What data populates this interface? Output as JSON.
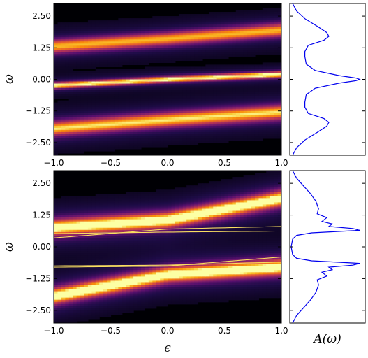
{
  "chart_data": [
    {
      "type": "heatmap",
      "panel": "top",
      "xlabel": "",
      "ylabel": "ω",
      "xlim": [
        -1.0,
        1.0
      ],
      "ylim": [
        -3.0,
        3.0
      ],
      "x_ticks": [
        "−1.0",
        "−0.5",
        "0.0",
        "0.5",
        "1.0"
      ],
      "x_tick_values": [
        -1.0,
        -0.5,
        0.0,
        0.5,
        1.0
      ],
      "y_ticks": [
        "2.50",
        "1.25",
        "0.00",
        "−1.25",
        "−2.50"
      ],
      "y_tick_values": [
        2.5,
        1.25,
        0.0,
        -1.25,
        -2.5
      ],
      "colormap": "inferno",
      "bands": [
        {
          "name": "upper-band",
          "epsilon": [
            -1.0,
            0.0,
            1.0
          ],
          "omega": [
            1.3,
            1.6,
            1.95
          ],
          "intensity": 0.75,
          "width": 0.18
        },
        {
          "name": "lower-band",
          "epsilon": [
            -1.0,
            0.0,
            1.0
          ],
          "omega": [
            -1.95,
            -1.6,
            -1.3
          ],
          "intensity": 0.8,
          "width": 0.2
        },
        {
          "name": "central-band",
          "epsilon": [
            -1.0,
            0.0,
            1.0
          ],
          "omega": [
            -0.25,
            0.0,
            0.2
          ],
          "intensity": 0.9,
          "width": 0.08
        }
      ],
      "lines": [
        {
          "name": "quasiparticle-line",
          "epsilon": [
            -1.0,
            0.0,
            1.0
          ],
          "omega": [
            -0.22,
            -0.02,
            0.18
          ]
        }
      ]
    },
    {
      "type": "line",
      "panel": "top-side",
      "xlabel": "",
      "ylabel": "",
      "ylim": [
        -3.0,
        3.0
      ],
      "line_color": "#0000ee",
      "omega": [
        -3.0,
        -2.7,
        -2.4,
        -2.1,
        -1.85,
        -1.7,
        -1.55,
        -1.35,
        -1.1,
        -0.9,
        -0.6,
        -0.35,
        -0.15,
        -0.05,
        0.0,
        0.05,
        0.15,
        0.35,
        0.6,
        0.9,
        1.1,
        1.35,
        1.55,
        1.7,
        1.85,
        2.1,
        2.4,
        2.7,
        3.0
      ],
      "A": [
        0.02,
        0.08,
        0.2,
        0.38,
        0.52,
        0.55,
        0.48,
        0.25,
        0.2,
        0.2,
        0.22,
        0.35,
        0.7,
        0.95,
        1.0,
        0.95,
        0.7,
        0.35,
        0.22,
        0.2,
        0.2,
        0.25,
        0.48,
        0.55,
        0.52,
        0.38,
        0.2,
        0.08,
        0.02
      ]
    },
    {
      "type": "heatmap",
      "panel": "bottom",
      "xlabel": "ϵ",
      "ylabel": "ω",
      "xlim": [
        -1.0,
        1.0
      ],
      "ylim": [
        -3.0,
        3.0
      ],
      "x_ticks": [
        "−1.0",
        "−0.5",
        "0.0",
        "0.5",
        "1.0"
      ],
      "x_tick_values": [
        -1.0,
        -0.5,
        0.0,
        0.5,
        1.0
      ],
      "y_ticks": [
        "2.50",
        "1.25",
        "0.00",
        "−1.25",
        "−2.50"
      ],
      "y_tick_values": [
        2.5,
        1.25,
        0.0,
        -1.25,
        -2.5
      ],
      "colormap": "inferno",
      "bands": [
        {
          "name": "upper-band",
          "epsilon": [
            -1.0,
            0.0,
            1.0
          ],
          "omega": [
            0.75,
            1.05,
            1.9
          ],
          "intensity": 0.95,
          "width": 0.22
        },
        {
          "name": "lower-band",
          "epsilon": [
            -1.0,
            0.0,
            1.0
          ],
          "omega": [
            -1.95,
            -1.1,
            -0.8
          ],
          "intensity": 0.95,
          "width": 0.22
        }
      ],
      "lines": [
        {
          "name": "line-1",
          "epsilon": [
            -1.0,
            0.0,
            1.0
          ],
          "omega": [
            0.35,
            0.7,
            0.8
          ]
        },
        {
          "name": "line-2",
          "epsilon": [
            -1.0,
            0.0,
            1.0
          ],
          "omega": [
            0.52,
            0.58,
            0.62
          ]
        },
        {
          "name": "line-3",
          "epsilon": [
            -1.0,
            0.0,
            1.0
          ],
          "omega": [
            -0.75,
            -0.72,
            -0.6
          ]
        },
        {
          "name": "line-4",
          "epsilon": [
            -1.0,
            0.0,
            1.0
          ],
          "omega": [
            -0.8,
            -0.76,
            -0.4
          ]
        }
      ]
    },
    {
      "type": "line",
      "panel": "bottom-side",
      "xlabel": "A(ω)",
      "ylabel": "",
      "ylim": [
        -3.0,
        3.0
      ],
      "line_color": "#0000ee",
      "omega": [
        -3.0,
        -2.7,
        -2.4,
        -2.1,
        -1.8,
        -1.5,
        -1.3,
        -1.15,
        -1.0,
        -0.9,
        -0.8,
        -0.72,
        -0.65,
        -0.55,
        -0.45,
        -0.3,
        0.0,
        0.3,
        0.45,
        0.55,
        0.65,
        0.72,
        0.8,
        0.9,
        1.0,
        1.15,
        1.3,
        1.5,
        1.8,
        2.1,
        2.4,
        2.7,
        3.0
      ],
      "A": [
        0.02,
        0.08,
        0.18,
        0.28,
        0.36,
        0.4,
        0.38,
        0.52,
        0.45,
        0.6,
        0.55,
        0.9,
        1.0,
        0.3,
        0.08,
        0.02,
        0.0,
        0.02,
        0.08,
        0.3,
        1.0,
        0.9,
        0.55,
        0.6,
        0.45,
        0.52,
        0.38,
        0.4,
        0.36,
        0.28,
        0.18,
        0.08,
        0.02
      ]
    }
  ]
}
